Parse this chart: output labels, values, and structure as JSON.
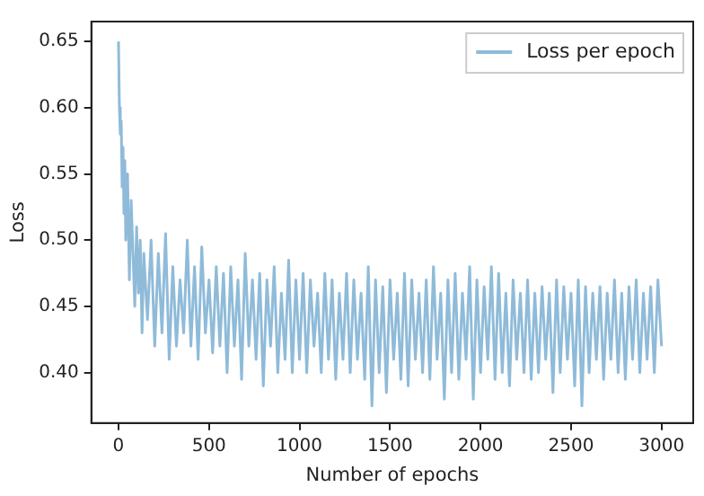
{
  "chart_data": {
    "type": "line",
    "xlabel": "Number of epochs",
    "ylabel": "Loss",
    "legend": "top right",
    "grid": false,
    "marker": "none",
    "line_style": "solid",
    "xlim": [
      -150,
      3175
    ],
    "xticks": [
      0,
      500,
      1000,
      1500,
      2000,
      2500,
      3000
    ],
    "ylim": [
      0.362,
      0.665
    ],
    "yticks": [
      {
        "value": 0.4,
        "label": "0.40"
      },
      {
        "value": 0.45,
        "label": "0.45"
      },
      {
        "value": 0.5,
        "label": "0.50"
      },
      {
        "value": 0.55,
        "label": "0.55"
      },
      {
        "value": 0.6,
        "label": "0.60"
      },
      {
        "value": 0.65,
        "label": "0.65"
      }
    ],
    "series": [
      {
        "name": "Loss per epoch",
        "color": "#8fbbd9",
        "x": [
          0,
          5,
          10,
          15,
          20,
          25,
          30,
          35,
          40,
          50,
          60,
          70,
          80,
          90,
          100,
          110,
          120,
          130,
          140,
          160,
          180,
          200,
          220,
          240,
          260,
          280,
          300,
          320,
          340,
          360,
          380,
          400,
          420,
          440,
          460,
          480,
          500,
          520,
          540,
          560,
          580,
          600,
          620,
          640,
          660,
          680,
          700,
          720,
          740,
          760,
          780,
          800,
          820,
          840,
          860,
          880,
          900,
          920,
          940,
          960,
          980,
          1000,
          1020,
          1040,
          1060,
          1080,
          1100,
          1120,
          1140,
          1160,
          1180,
          1200,
          1220,
          1240,
          1260,
          1280,
          1300,
          1320,
          1340,
          1360,
          1380,
          1400,
          1420,
          1440,
          1460,
          1480,
          1500,
          1520,
          1540,
          1560,
          1580,
          1600,
          1620,
          1640,
          1660,
          1680,
          1700,
          1720,
          1740,
          1760,
          1780,
          1800,
          1820,
          1840,
          1860,
          1880,
          1900,
          1920,
          1940,
          1960,
          1980,
          2000,
          2020,
          2040,
          2060,
          2080,
          2100,
          2120,
          2140,
          2160,
          2180,
          2200,
          2220,
          2240,
          2260,
          2280,
          2300,
          2320,
          2340,
          2360,
          2380,
          2400,
          2420,
          2440,
          2460,
          2480,
          2500,
          2520,
          2540,
          2560,
          2580,
          2600,
          2620,
          2640,
          2660,
          2680,
          2700,
          2720,
          2740,
          2760,
          2780,
          2800,
          2820,
          2840,
          2860,
          2880,
          2900,
          2920,
          2940,
          2960,
          2980,
          3000
        ],
        "values": [
          0.65,
          0.6,
          0.58,
          0.59,
          0.54,
          0.57,
          0.52,
          0.56,
          0.5,
          0.55,
          0.47,
          0.53,
          0.49,
          0.45,
          0.51,
          0.46,
          0.5,
          0.43,
          0.49,
          0.44,
          0.5,
          0.42,
          0.49,
          0.43,
          0.505,
          0.41,
          0.48,
          0.42,
          0.47,
          0.43,
          0.5,
          0.42,
          0.48,
          0.41,
          0.495,
          0.43,
          0.47,
          0.415,
          0.48,
          0.42,
          0.475,
          0.4,
          0.48,
          0.42,
          0.47,
          0.395,
          0.49,
          0.42,
          0.47,
          0.41,
          0.475,
          0.39,
          0.47,
          0.42,
          0.48,
          0.4,
          0.46,
          0.41,
          0.485,
          0.4,
          0.47,
          0.41,
          0.475,
          0.4,
          0.47,
          0.42,
          0.46,
          0.4,
          0.475,
          0.41,
          0.47,
          0.395,
          0.46,
          0.41,
          0.475,
          0.4,
          0.47,
          0.41,
          0.46,
          0.395,
          0.48,
          0.375,
          0.47,
          0.4,
          0.465,
          0.385,
          0.47,
          0.41,
          0.46,
          0.395,
          0.475,
          0.39,
          0.47,
          0.41,
          0.46,
          0.4,
          0.47,
          0.395,
          0.48,
          0.41,
          0.46,
          0.38,
          0.47,
          0.4,
          0.475,
          0.395,
          0.46,
          0.41,
          0.48,
          0.38,
          0.47,
          0.4,
          0.465,
          0.41,
          0.48,
          0.395,
          0.475,
          0.4,
          0.46,
          0.39,
          0.47,
          0.41,
          0.46,
          0.4,
          0.47,
          0.395,
          0.46,
          0.4,
          0.465,
          0.41,
          0.46,
          0.385,
          0.47,
          0.4,
          0.465,
          0.41,
          0.46,
          0.39,
          0.47,
          0.375,
          0.465,
          0.4,
          0.46,
          0.41,
          0.465,
          0.395,
          0.46,
          0.41,
          0.47,
          0.4,
          0.46,
          0.395,
          0.465,
          0.41,
          0.47,
          0.4,
          0.46,
          0.41,
          0.465,
          0.4,
          0.47,
          0.42
        ]
      }
    ]
  }
}
